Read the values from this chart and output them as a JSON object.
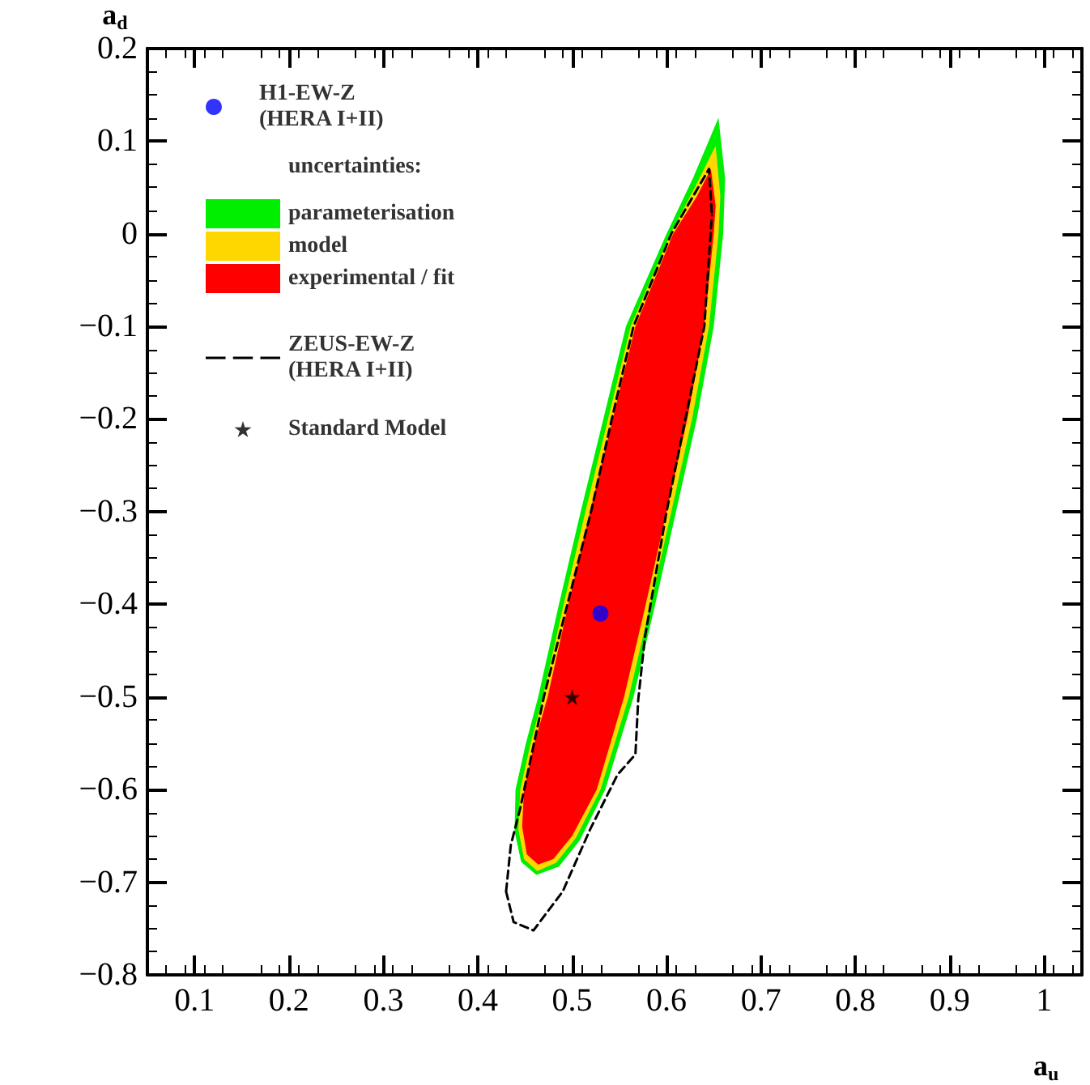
{
  "chart_data": {
    "type": "area",
    "xlabel": "a$_{u}$",
    "ylabel": "a$_{d}$",
    "legend_title": "uncertainties:",
    "xlim": [
      0.05,
      1.04
    ],
    "ylim": [
      -0.8,
      0.2
    ],
    "xticks": [
      0.1,
      0.2,
      0.3,
      0.4,
      0.5,
      0.6,
      0.7,
      0.8,
      0.9,
      1
    ],
    "yticks": [
      {
        "value": -0.8,
        "label": "−0.8"
      },
      {
        "value": -0.7,
        "label": "−0.7"
      },
      {
        "value": -0.6,
        "label": "−0.6"
      },
      {
        "value": -0.5,
        "label": "−0.5"
      },
      {
        "value": -0.4,
        "label": "−0.4"
      },
      {
        "value": -0.3,
        "label": "−0.3"
      },
      {
        "value": -0.2,
        "label": "−0.2"
      },
      {
        "value": -0.1,
        "label": "−0.1"
      },
      0,
      0.1,
      0.2
    ],
    "grid": false,
    "legend": "top left",
    "series": [
      {
        "name": "H1-EW-Z\n(HERA I+II)",
        "type": "scatter",
        "marker": "circle",
        "color": "#0000ff",
        "x": [
          0.53
        ],
        "values": [
          -0.41
        ]
      },
      {
        "name": "parameterisation",
        "type": "area",
        "color": "#00ee00",
        "x": [
          0.655,
          0.662,
          0.66,
          0.65,
          0.632,
          0.61,
          0.588,
          0.565,
          0.535,
          0.508,
          0.486,
          0.462,
          0.446,
          0.439,
          0.44,
          0.451,
          0.464,
          0.486,
          0.509,
          0.533,
          0.557,
          0.6,
          0.628,
          0.655
        ],
        "values": [
          0.125,
          0.06,
          0,
          -0.1,
          -0.2,
          -0.3,
          -0.4,
          -0.5,
          -0.6,
          -0.655,
          -0.683,
          -0.692,
          -0.678,
          -0.645,
          -0.6,
          -0.55,
          -0.5,
          -0.4,
          -0.3,
          -0.2,
          -0.1,
          0,
          0.06,
          0.125
        ]
      },
      {
        "name": "model",
        "type": "area",
        "color": "#ffd700",
        "x": [
          0.652,
          0.657,
          0.655,
          0.645,
          0.627,
          0.605,
          0.583,
          0.56,
          0.53,
          0.504,
          0.483,
          0.463,
          0.449,
          0.443,
          0.445,
          0.456,
          0.469,
          0.491,
          0.514,
          0.538,
          0.562,
          0.604,
          0.63,
          0.652
        ],
        "values": [
          0.095,
          0.04,
          0,
          -0.1,
          -0.2,
          -0.3,
          -0.4,
          -0.5,
          -0.6,
          -0.652,
          -0.679,
          -0.688,
          -0.675,
          -0.643,
          -0.6,
          -0.55,
          -0.5,
          -0.4,
          -0.3,
          -0.2,
          -0.1,
          0,
          0.05,
          0.095
        ]
      },
      {
        "name": "experimental / fit",
        "type": "area",
        "color": "#ff0000",
        "x": [
          0.647,
          0.652,
          0.65,
          0.64,
          0.622,
          0.6,
          0.578,
          0.555,
          0.526,
          0.5,
          0.48,
          0.464,
          0.452,
          0.447,
          0.449,
          0.46,
          0.474,
          0.496,
          0.519,
          0.543,
          0.567,
          0.607,
          0.632,
          0.647
        ],
        "values": [
          0.07,
          0.03,
          0,
          -0.1,
          -0.2,
          -0.3,
          -0.4,
          -0.5,
          -0.6,
          -0.65,
          -0.675,
          -0.681,
          -0.67,
          -0.64,
          -0.6,
          -0.55,
          -0.5,
          -0.4,
          -0.3,
          -0.2,
          -0.1,
          0,
          0.04,
          0.07
        ]
      },
      {
        "name": "ZEUS-EW-Z\n(HERA I+II)",
        "type": "line",
        "line_style": "dashed",
        "marker": "none",
        "color": "#000000",
        "x": [
          0.43,
          0.435,
          0.445,
          0.47,
          0.495,
          0.52,
          0.542,
          0.565,
          0.605,
          0.645,
          0.648,
          null,
          0.43,
          0.438,
          0.459,
          0.49,
          0.519,
          0.548,
          0.567,
          0.57,
          0.577,
          0.6,
          0.62,
          0.64,
          0.648
        ],
        "values": [
          -0.71,
          -0.66,
          -0.62,
          -0.5,
          -0.4,
          -0.3,
          -0.2,
          -0.1,
          0,
          0.07,
          0.02,
          null,
          -0.71,
          -0.743,
          -0.752,
          -0.71,
          -0.643,
          -0.584,
          -0.562,
          -0.503,
          -0.436,
          -0.3,
          -0.2,
          -0.1,
          0.02
        ]
      },
      {
        "name": "Standard Model",
        "type": "scatter",
        "marker": "star",
        "color": "#000000",
        "x": [
          0.5
        ],
        "values": [
          -0.5
        ]
      }
    ]
  }
}
